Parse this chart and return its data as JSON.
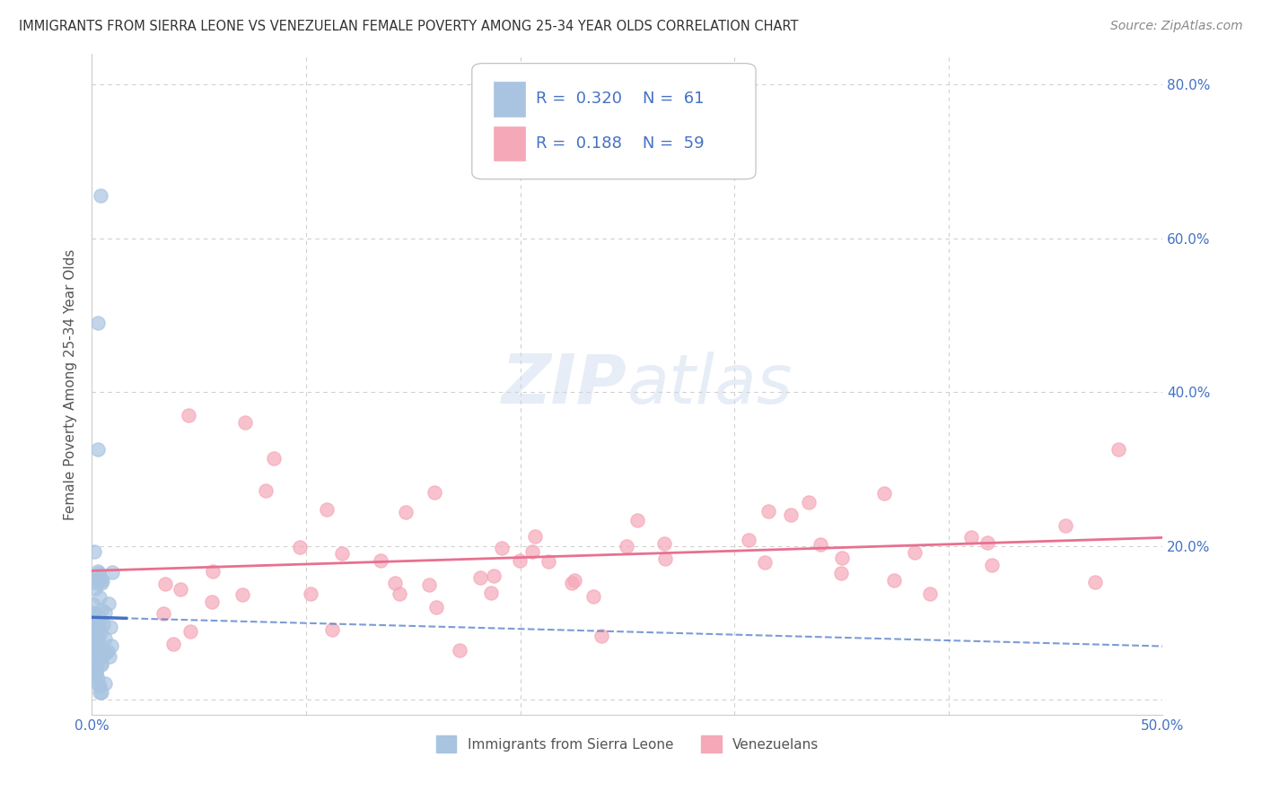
{
  "title": "IMMIGRANTS FROM SIERRA LEONE VS VENEZUELAN FEMALE POVERTY AMONG 25-34 YEAR OLDS CORRELATION CHART",
  "source": "Source: ZipAtlas.com",
  "ylabel": "Female Poverty Among 25-34 Year Olds",
  "xlim": [
    0.0,
    0.5
  ],
  "ylim": [
    -0.02,
    0.84
  ],
  "xtick_vals": [
    0.0,
    0.1,
    0.2,
    0.3,
    0.4,
    0.5
  ],
  "xticklabels": [
    "0.0%",
    "",
    "",
    "",
    "",
    "50.0%"
  ],
  "ytick_vals": [
    0.0,
    0.2,
    0.4,
    0.6,
    0.8
  ],
  "yticklabels_right": [
    "",
    "20.0%",
    "40.0%",
    "60.0%",
    "80.0%"
  ],
  "legend_label1": "Immigrants from Sierra Leone",
  "legend_label2": "Venezuelans",
  "R1": 0.32,
  "N1": 61,
  "R2": 0.188,
  "N2": 59,
  "color1": "#a8c4e0",
  "color2": "#f5a8b8",
  "line_color1": "#4472c4",
  "line_color2": "#e87090",
  "watermark": "ZIPatlas",
  "background_color": "#ffffff",
  "grid_color": "#d0d0d0",
  "title_color": "#333333",
  "source_color": "#888888",
  "axis_label_color": "#555555",
  "tick_label_color": "#4472c4"
}
